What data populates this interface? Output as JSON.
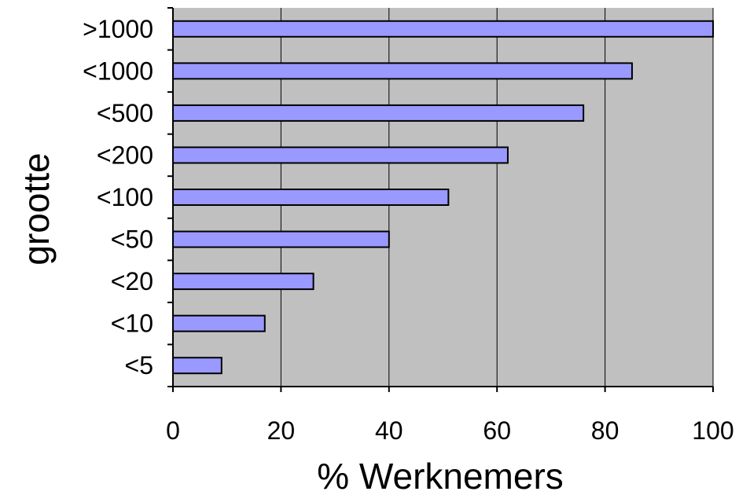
{
  "chart_data": {
    "type": "bar",
    "orientation": "horizontal",
    "categories": [
      ">1000",
      "<1000",
      "<500",
      "<200",
      "<100",
      "<50",
      "<20",
      "<10",
      "<5"
    ],
    "values": [
      100,
      85,
      76,
      62,
      51,
      40,
      26,
      17,
      9
    ],
    "xlabel": "% Werknemers",
    "ylabel": "grootte",
    "xlim": [
      0,
      100
    ],
    "xticks": [
      "0",
      "20",
      "40",
      "60",
      "80",
      "100"
    ],
    "grid": "vertical",
    "legend": "none",
    "colors": {
      "bar": "#9999ff",
      "plot_background": "#c0c0c0",
      "border": "#000000"
    }
  }
}
